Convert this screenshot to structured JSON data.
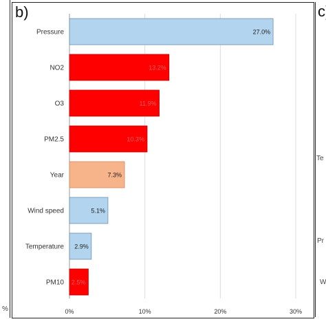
{
  "panels": {
    "main_label": "b)",
    "right_label": "c)",
    "right_fragments": [
      "Te",
      "Pr",
      "W"
    ],
    "left_fragments": [
      "%"
    ]
  },
  "colors": {
    "red": "#ff0000",
    "orange": "#f7b38a",
    "blue": "#b3d4ee",
    "label_dark": "#222222",
    "label_faint": "#e06060"
  },
  "chart_data": {
    "type": "bar",
    "orientation": "horizontal",
    "categories": [
      "Pressure",
      "NO2",
      "O3",
      "PM2.5",
      "Year",
      "Wind speed",
      "Temperature",
      "PM10"
    ],
    "values": [
      27.0,
      13.2,
      11.9,
      10.3,
      7.3,
      5.1,
      2.9,
      2.5
    ],
    "labels": [
      "27.0%",
      "13.2%",
      "11.9%",
      "10.3%",
      "7.3%",
      "5.1%",
      "2.9%",
      "2.5%"
    ],
    "colors": [
      "blue",
      "red",
      "red",
      "red",
      "orange",
      "blue",
      "blue",
      "red"
    ],
    "xlim": [
      0,
      30
    ],
    "xticks": [
      0,
      10,
      20,
      30
    ],
    "xtick_labels": [
      "0%",
      "10%",
      "20%",
      "30%"
    ],
    "grid": true
  }
}
